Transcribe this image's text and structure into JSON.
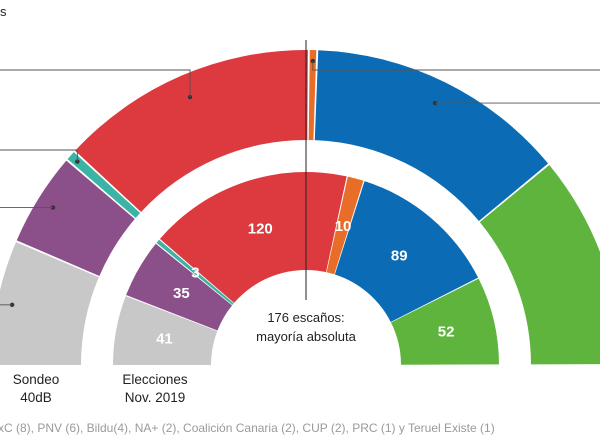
{
  "corner_text": "s",
  "center_label": [
    "176 escaños:",
    "mayoría absoluta"
  ],
  "footnote": "xC (8), PNV (6), Bildu(4), NA+ (2), Coalición Canaria (2), CUP (2), PRC (1) y Teruel Existe (1)",
  "chart_data": [
    {
      "type": "parliament-semicircle",
      "label": [
        "Sondeo",
        "40dB"
      ],
      "total": 350,
      "values_shown": false,
      "segments": [
        {
          "color": "#c8c8c8",
          "value": 45
        },
        {
          "color": "#8b4f8a",
          "value": 34
        },
        {
          "color": "#3cb4a5",
          "value": 4
        },
        {
          "color": "#dd3a3f",
          "value": 93
        },
        {
          "color": "#e86d28",
          "value": 3
        },
        {
          "color": "#0b6cb5",
          "value": 94
        },
        {
          "color": "#5fb43d",
          "value": 77
        }
      ]
    },
    {
      "type": "parliament-semicircle",
      "label": [
        "Elecciones",
        "Nov. 2019"
      ],
      "total": 350,
      "values_shown": true,
      "segments": [
        {
          "color": "#c8c8c8",
          "value": 41
        },
        {
          "color": "#8b4f8a",
          "value": 35
        },
        {
          "color": "#3cb4a5",
          "value": 3
        },
        {
          "color": "#dd3a3f",
          "value": 120
        },
        {
          "color": "#e86d28",
          "value": 10
        },
        {
          "color": "#0b6cb5",
          "value": 89
        },
        {
          "color": "#5fb43d",
          "value": 52
        }
      ]
    }
  ]
}
